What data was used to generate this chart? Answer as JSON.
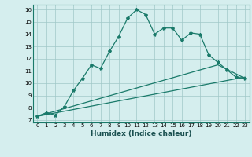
{
  "title": "",
  "xlabel": "Humidex (Indice chaleur)",
  "ylabel": "",
  "bg_color": "#d5eeee",
  "line_color": "#1a7a6a",
  "xlim": [
    -0.5,
    23.5
  ],
  "ylim": [
    6.8,
    16.4
  ],
  "xticks": [
    0,
    1,
    2,
    3,
    4,
    5,
    6,
    7,
    8,
    9,
    10,
    11,
    12,
    13,
    14,
    15,
    16,
    17,
    18,
    19,
    20,
    21,
    22,
    23
  ],
  "yticks": [
    7,
    8,
    9,
    10,
    11,
    12,
    13,
    14,
    15,
    16
  ],
  "line1_x": [
    0,
    1,
    2,
    3,
    4,
    5,
    6,
    7,
    8,
    9,
    10,
    11,
    12,
    13,
    14,
    15,
    16,
    17,
    18,
    19,
    20,
    21,
    22,
    23
  ],
  "line1_y": [
    7.3,
    7.6,
    7.4,
    8.1,
    9.4,
    10.4,
    11.5,
    11.2,
    12.6,
    13.8,
    15.3,
    16.0,
    15.6,
    14.0,
    14.5,
    14.5,
    13.5,
    14.1,
    14.0,
    12.3,
    11.7,
    11.1,
    10.5,
    10.4
  ],
  "line2_x": [
    0,
    23
  ],
  "line2_y": [
    7.3,
    10.5
  ],
  "line3_x": [
    0,
    20,
    23
  ],
  "line3_y": [
    7.3,
    11.5,
    10.4
  ],
  "xlabel_fontsize": 6.5,
  "tick_fontsize": 5.0,
  "linewidth": 0.9,
  "markersize": 3.0
}
